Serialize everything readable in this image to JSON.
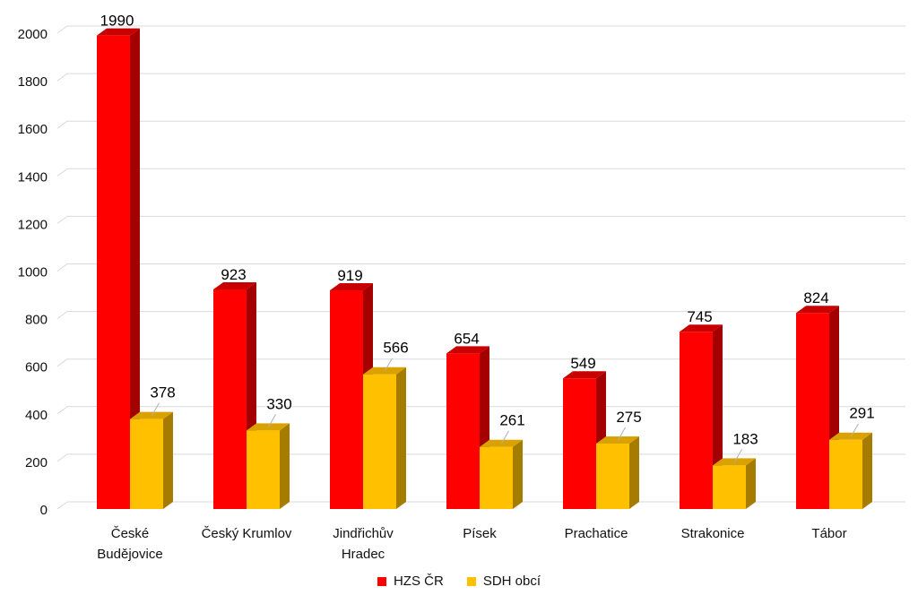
{
  "chart_data": {
    "type": "bar",
    "categories": [
      [
        "České",
        "Budějovice"
      ],
      [
        "Český Krumlov"
      ],
      [
        "Jindřichův",
        "Hradec"
      ],
      [
        "Písek"
      ],
      [
        "Prachatice"
      ],
      [
        "Strakonice"
      ],
      [
        "Tábor"
      ]
    ],
    "series": [
      {
        "name": "HZS ČR",
        "values": [
          1990,
          923,
          919,
          654,
          549,
          745,
          824
        ],
        "color": "#ff0000",
        "side_color": "#a30000",
        "top_color": "#c80000"
      },
      {
        "name": "SDH obcí",
        "values": [
          378,
          330,
          566,
          261,
          275,
          183,
          291
        ],
        "color": "#ffc000",
        "side_color": "#a67c00",
        "top_color": "#d9a200"
      }
    ],
    "yticks": [
      "0",
      "200",
      "400",
      "600",
      "800",
      "1000",
      "1200",
      "1400",
      "1600",
      "1800",
      "2000"
    ],
    "ylim": [
      0,
      2000
    ],
    "grid": true,
    "legend_position": "bottom",
    "title": "",
    "xlabel": "",
    "ylabel": ""
  }
}
